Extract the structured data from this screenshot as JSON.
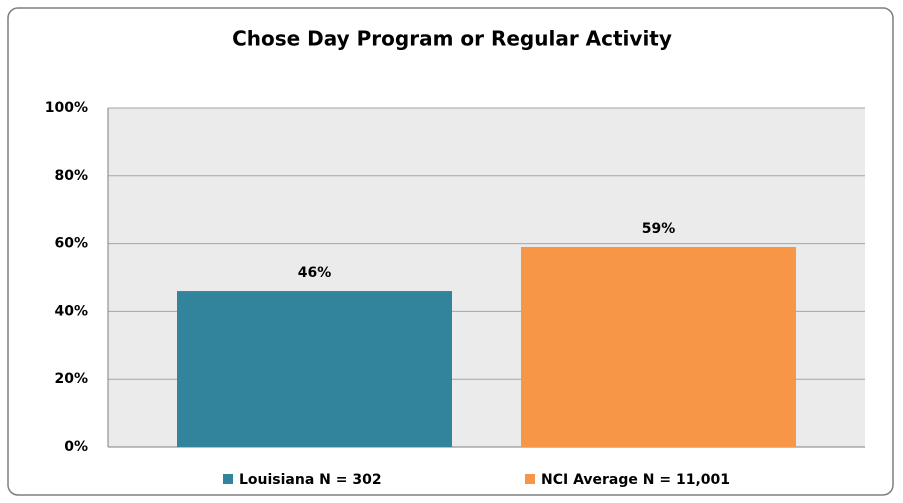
{
  "chart_data": {
    "type": "bar",
    "title": "Chose Day Program or Regular Activity",
    "categories": [
      null
    ],
    "series": [
      {
        "name": "Louisiana N = 302",
        "color": "#31849b",
        "values": [
          46
        ],
        "value_labels": [
          "46%"
        ]
      },
      {
        "name": "NCI Average N = 11,001",
        "color": "#f79646",
        "values": [
          59
        ],
        "value_labels": [
          "59%"
        ]
      }
    ],
    "ylim": [
      0,
      100
    ],
    "yticks": [
      {
        "value": 0,
        "label": "0%"
      },
      {
        "value": 20,
        "label": "20%"
      },
      {
        "value": 40,
        "label": "40%"
      },
      {
        "value": 60,
        "label": "60%"
      },
      {
        "value": 80,
        "label": "80%"
      },
      {
        "value": 100,
        "label": "100%"
      }
    ],
    "grid": true,
    "legend": "bottom"
  }
}
